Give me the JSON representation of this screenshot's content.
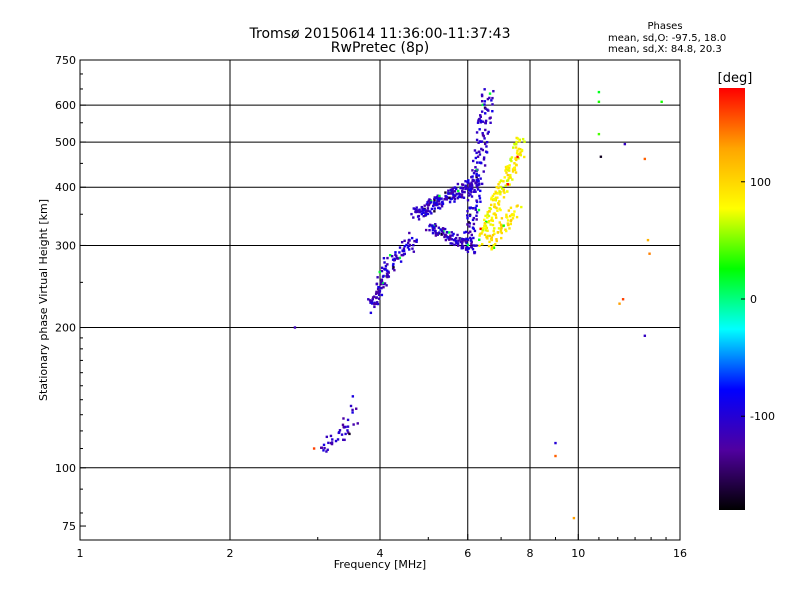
{
  "chart_data": {
    "type": "scatter",
    "title": "Tromsø 20150614 11:36:00-11:37:43",
    "subtitle": "RwPretec (8p)",
    "xlabel": "Frequency [MHz]",
    "ylabel": "Stationary phase Virtual Height [km]",
    "xscale": "log",
    "yscale": "log",
    "xlim": [
      1,
      16
    ],
    "ylim": [
      70,
      750
    ],
    "xticks": [
      1,
      2,
      4,
      6,
      8,
      10,
      16
    ],
    "yticks": [
      75,
      100,
      200,
      300,
      400,
      500,
      600,
      750
    ],
    "x_gridlines": [
      2,
      4,
      6,
      8,
      10
    ],
    "y_gridlines": [
      100,
      200,
      300,
      400,
      500,
      600
    ],
    "phase_stats": {
      "header": "Phases",
      "o_line": "mean, sd,O: -97.5, 18.0",
      "x_line": "mean, sd,X:  84.8, 20.3"
    },
    "colorbar": {
      "label": "[deg]",
      "range": [
        -180,
        180
      ],
      "ticks": [
        100,
        0,
        -100
      ],
      "stops": [
        "#ff0000",
        "#ffa500",
        "#ffff00",
        "#00ff00",
        "#00ffff",
        "#0000ff",
        "#5000a0",
        "#000000"
      ]
    },
    "series": [
      {
        "name": "Stray points",
        "x": [
          2.7,
          2.95,
          9.0,
          9.0,
          9.8,
          11.0,
          11.0,
          11.0,
          11.1,
          12.4,
          12.3,
          12.1,
          13.6,
          13.8,
          13.9,
          13.6,
          14.7
        ],
        "y": [
          200,
          110,
          113,
          106,
          78,
          640,
          610,
          520,
          465,
          495,
          230,
          225,
          460,
          308,
          288,
          192,
          610
        ],
        "phase": [
          -115,
          160,
          -100,
          150,
          130,
          20,
          30,
          40,
          -170,
          -110,
          160,
          130,
          150,
          120,
          140,
          -110,
          30
        ]
      }
    ],
    "traces": [
      {
        "name": "E-layer trace",
        "x_range": [
          3.05,
          3.55
        ],
        "y_range": [
          110,
          122
        ],
        "n": 30,
        "phase": -110,
        "spread": 0.05
      },
      {
        "name": "E-layer trace upper",
        "x_range": [
          3.4,
          3.55
        ],
        "y_range": [
          122,
          142
        ],
        "n": 10,
        "phase": -110,
        "spread": 0.05
      },
      {
        "name": "F1 cusp lower",
        "x_range": [
          3.85,
          4.1
        ],
        "y_range": [
          220,
          265
        ],
        "n": 60,
        "phase": -110,
        "spread": 0.05
      },
      {
        "name": "F1 rising",
        "x_range": [
          4.1,
          4.7
        ],
        "y_range": [
          265,
          310
        ],
        "n": 60,
        "phase": -105,
        "spread": 0.06
      },
      {
        "name": "F2 o-trace band",
        "x_range": [
          4.7,
          6.3
        ],
        "y_range": [
          350,
          410
        ],
        "n": 180,
        "phase": -105,
        "spread": 0.05
      },
      {
        "name": "F2 lower curve",
        "x_range": [
          5.0,
          6.2
        ],
        "y_range": [
          330,
          295
        ],
        "n": 110,
        "phase": -110,
        "spread": 0.04
      },
      {
        "name": "F2 o-trace steep",
        "x_range": [
          6.0,
          6.6
        ],
        "y_range": [
          300,
          640
        ],
        "n": 150,
        "phase": -105,
        "spread": 0.06
      },
      {
        "name": "F2 x-trace",
        "x_range": [
          6.4,
          7.7
        ],
        "y_range": [
          310,
          500
        ],
        "n": 160,
        "phase": 85,
        "spread": 0.06
      },
      {
        "name": "F2 x-trace cusp",
        "x_range": [
          6.6,
          7.5
        ],
        "y_range": [
          300,
          360
        ],
        "n": 60,
        "phase": 90,
        "spread": 0.05
      }
    ]
  }
}
